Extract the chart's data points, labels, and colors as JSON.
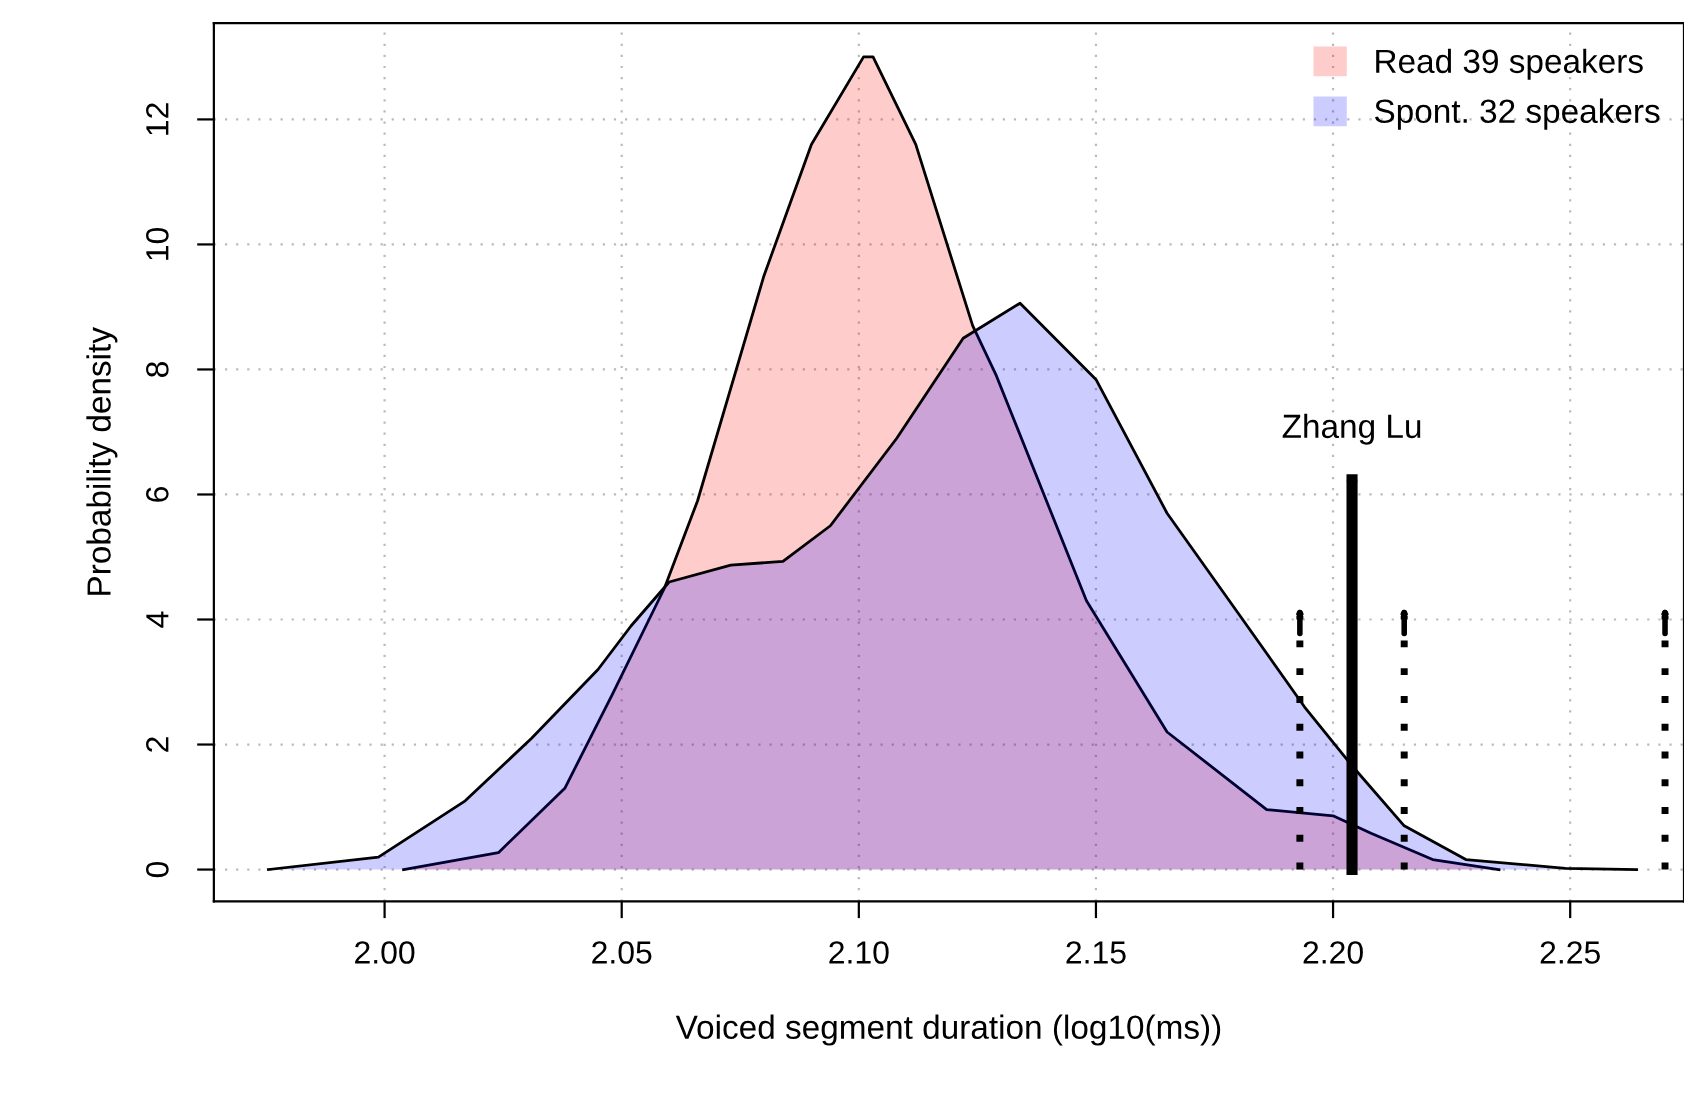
{
  "chart_data": {
    "type": "area",
    "xlabel": "Voiced segment duration (log10(ms))",
    "ylabel": "Probability density",
    "series": [
      {
        "name": "Read 39 speakers",
        "color": "#ffcccc",
        "x": [
          2.004,
          2.024,
          2.038,
          2.048,
          2.059,
          2.066,
          2.08,
          2.09,
          2.101,
          2.103,
          2.112,
          2.124,
          2.129,
          2.148,
          2.165,
          2.186,
          2.2,
          2.208,
          2.221,
          2.235
        ],
        "values": [
          0,
          0.27,
          1.3,
          2.8,
          4.5,
          5.9,
          9.5,
          11.6,
          13.0,
          13.0,
          11.6,
          8.7,
          7.9,
          4.3,
          2.2,
          0.96,
          0.86,
          0.58,
          0.16,
          0
        ]
      },
      {
        "name": "Spont. 32 speakers",
        "color": "#ccccff",
        "x": [
          1.9755,
          1.9987,
          2.017,
          2.031,
          2.045,
          2.052,
          2.06,
          2.073,
          2.084,
          2.094,
          2.108,
          2.122,
          2.134,
          2.15,
          2.165,
          2.18,
          2.194,
          2.204,
          2.215,
          2.228,
          2.249,
          2.264
        ],
        "values": [
          0,
          0.2,
          1.1,
          2.1,
          3.2,
          3.9,
          4.6,
          4.87,
          4.93,
          5.5,
          6.9,
          8.5,
          9.06,
          7.84,
          5.7,
          4.1,
          2.6,
          1.66,
          0.7,
          0.16,
          0.02,
          0
        ]
      }
    ],
    "xlim": [
      1.964,
      2.274
    ],
    "ylim": [
      -0.51,
      13.54
    ],
    "xticks": [
      {
        "value": 2.0,
        "label": "2.00"
      },
      {
        "value": 2.05,
        "label": "2.05"
      },
      {
        "value": 2.1,
        "label": "2.10"
      },
      {
        "value": 2.15,
        "label": "2.15"
      },
      {
        "value": 2.2,
        "label": "2.20"
      },
      {
        "value": 2.25,
        "label": "2.25"
      }
    ],
    "yticks": [
      0,
      2,
      4,
      6,
      8,
      10,
      12
    ],
    "grid": true,
    "legend": "top right",
    "ref_lines": [
      {
        "axis": "x",
        "value": 2.204,
        "line_style": "solid",
        "label": "Zhang Lu"
      },
      {
        "axis": "x",
        "value": 2.193,
        "line_style": "dotted"
      },
      {
        "axis": "x",
        "value": 2.215,
        "line_style": "dotted"
      },
      {
        "axis": "x",
        "value": 2.27,
        "line_style": "dotted"
      }
    ]
  }
}
